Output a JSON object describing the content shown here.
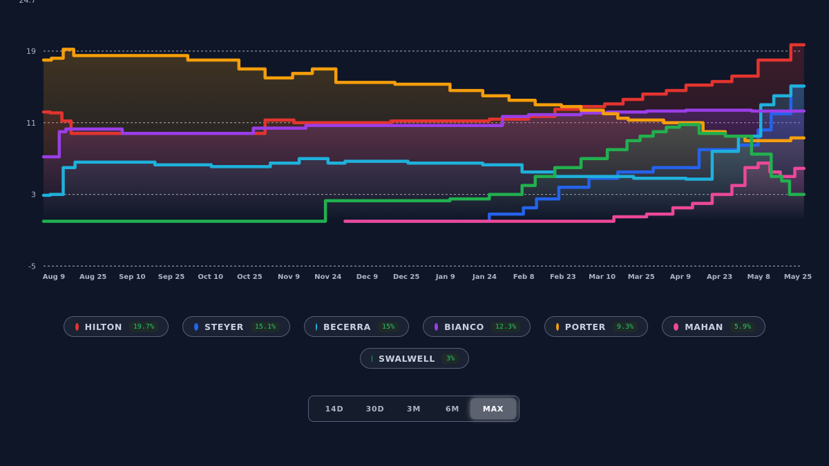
{
  "chart_data": {
    "type": "line",
    "step": true,
    "ylim": [
      -5,
      24.7
    ],
    "y_ticks": [
      "24.7",
      "19",
      "11",
      "3",
      "-5"
    ],
    "x_ticks": [
      "Aug 9",
      "Aug 25",
      "Sep 10",
      "Sep 25",
      "Oct 10",
      "Oct 25",
      "Nov 9",
      "Nov 24",
      "Dec 9",
      "Dec 25",
      "Jan 9",
      "Jan 24",
      "Feb 8",
      "Feb 23",
      "Mar 10",
      "Mar 25",
      "Apr 9",
      "Apr 23",
      "May 8",
      "May 25"
    ],
    "x_range": [
      0,
      289
    ],
    "grid": true,
    "series": [
      {
        "name": "HILTON",
        "color": "#e3342f",
        "x": [
          0,
          5,
          9,
          12,
          83,
          86,
          105,
          160,
          180,
          190,
          200,
          208,
          220,
          222,
          235,
          240,
          250,
          260,
          265,
          280,
          290
        ],
        "y": [
          12.2,
          12.1,
          11.2,
          9.8,
          9.8,
          11.3,
          11.0,
          11.2,
          11.4,
          11.7,
          12.5,
          12.8,
          13.1,
          13.6,
          14.2,
          14.6,
          15.2,
          15.6,
          16.2,
          18.0,
          19.7
        ]
      },
      {
        "name": "STEYER",
        "color": "#2563eb",
        "x": [
          115,
          160,
          180,
          186,
          190,
          203,
          213,
          225,
          240,
          260,
          270,
          275,
          280,
          290
        ],
        "y": [
          0.0,
          0.0,
          0.8,
          1.5,
          2.5,
          3.8,
          4.8,
          5.5,
          6.0,
          8.0,
          8.5,
          10.2,
          12.0,
          15.1
        ]
      },
      {
        "name": "BECERRA",
        "color": "#1fb1dc",
        "x": [
          0,
          5,
          10,
          14,
          40,
          45,
          83,
          90,
          105,
          112,
          118,
          160,
          175,
          190,
          200,
          210,
          240,
          250,
          260,
          270,
          277,
          280,
          290
        ],
        "y": [
          2.9,
          3.0,
          6.0,
          6.6,
          6.6,
          6.3,
          6.1,
          6.5,
          7.0,
          6.5,
          6.7,
          6.5,
          6.3,
          5.5,
          5.0,
          5.0,
          4.8,
          4.7,
          7.8,
          9.5,
          13.0,
          14.0,
          15.1
        ]
      },
      {
        "name": "BIANCO",
        "color": "#9b3ee8",
        "x": [
          0,
          5,
          7,
          10,
          20,
          40,
          70,
          90,
          110,
          130,
          150,
          170,
          180,
          190,
          200,
          210,
          220,
          240,
          250,
          290
        ],
        "y": [
          7.2,
          7.2,
          10.0,
          10.3,
          10.3,
          9.8,
          9.8,
          10.4,
          10.7,
          10.7,
          10.7,
          10.7,
          11.7,
          11.9,
          11.9,
          12.1,
          12.2,
          12.3,
          12.4,
          12.3
        ]
      },
      {
        "name": "PORTER",
        "color": "#f59e0b",
        "x": [
          0,
          6,
          9,
          14,
          40,
          70,
          79,
          90,
          100,
          105,
          118,
          150,
          160,
          175,
          180,
          195,
          200,
          210,
          217,
          221,
          225,
          248,
          255,
          265,
          270,
          280,
          290
        ],
        "y": [
          18.0,
          18.2,
          19.2,
          18.5,
          18.5,
          18.0,
          17.0,
          16.0,
          16.5,
          17.0,
          15.5,
          15.3,
          14.6,
          14.0,
          13.5,
          13.0,
          12.8,
          12.4,
          12.0,
          11.5,
          11.3,
          11.0,
          10.0,
          9.5,
          9.0,
          9.0,
          9.3
        ]
      },
      {
        "name": "MAHAN",
        "color": "#ec4899",
        "x": [
          115,
          210,
          225,
          235,
          245,
          250,
          260,
          265,
          270,
          275,
          279,
          283,
          290
        ],
        "y": [
          0.0,
          0.0,
          0.5,
          0.8,
          1.5,
          2.0,
          3.0,
          4.0,
          6.0,
          6.5,
          5.5,
          5.0,
          5.9
        ]
      },
      {
        "name": "SWALWELL",
        "color": "#22b04f",
        "x": [
          0,
          100,
          115,
          120,
          150,
          160,
          180,
          185,
          190,
          200,
          210,
          220,
          225,
          230,
          235,
          240,
          245,
          255,
          265,
          275,
          280,
          283,
          286,
          290
        ],
        "y": [
          0.0,
          0.0,
          2.3,
          2.3,
          2.3,
          2.5,
          3.0,
          4.0,
          5.0,
          6.0,
          7.0,
          8.0,
          9.0,
          9.5,
          10.0,
          10.5,
          10.8,
          9.8,
          9.5,
          7.5,
          5.0,
          4.5,
          3.0,
          3.0
        ]
      }
    ]
  },
  "legend": [
    {
      "name": "HILTON",
      "value": "19.7%",
      "color": "#e3342f"
    },
    {
      "name": "STEYER",
      "value": "15.1%",
      "color": "#2563eb"
    },
    {
      "name": "BECERRA",
      "value": "15%",
      "color": "#1fb1dc"
    },
    {
      "name": "BIANCO",
      "value": "12.3%",
      "color": "#9b3ee8"
    },
    {
      "name": "PORTER",
      "value": "9.3%",
      "color": "#f59e0b"
    },
    {
      "name": "MAHAN",
      "value": "5.9%",
      "color": "#ec4899"
    },
    {
      "name": "SWALWELL",
      "value": "3%",
      "color": "#22b04f"
    }
  ],
  "range_selector": {
    "options": [
      "14D",
      "30D",
      "3M",
      "6M",
      "MAX"
    ],
    "selected": "MAX"
  }
}
